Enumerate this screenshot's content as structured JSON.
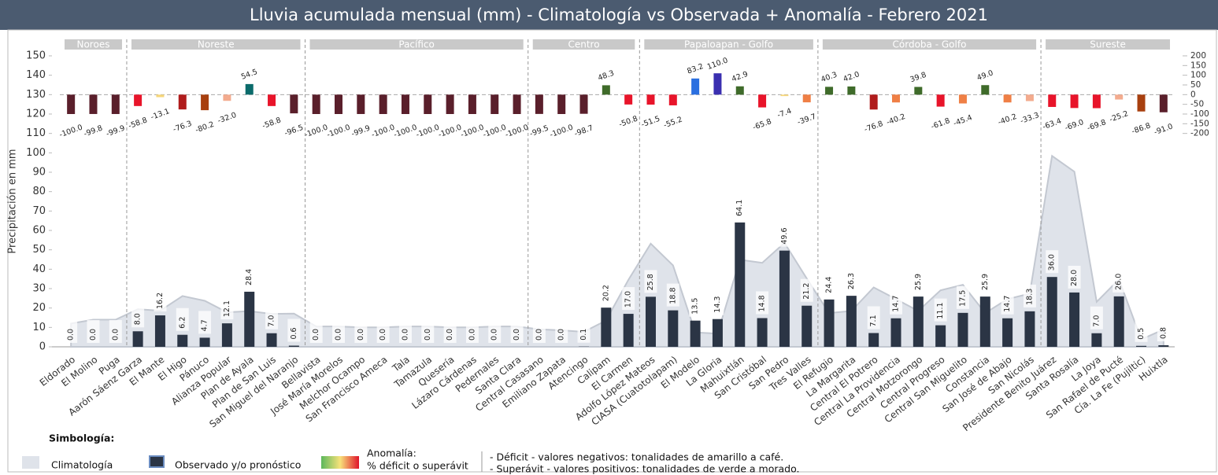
{
  "chart_data": {
    "type": "bar",
    "title": "Lluvia  acumulada mensual (mm)  -  Climatología vs Observada + Anomalía   -  Febrero 2021",
    "ylabel": "Precipitación en mm",
    "groups": [
      {
        "name": "Noroes",
        "categories": [
          "Eldorado",
          "El Molino",
          "Puga"
        ]
      },
      {
        "name": "Noreste",
        "categories": [
          "Aarón Sáenz Garza",
          "El Mante",
          "El Higo",
          "Pánuco",
          "Alianza Popular",
          "Plan de Ayala",
          "Plan de San Luis",
          "San Miguel del Naranjo"
        ]
      },
      {
        "name": "Pacífico",
        "categories": [
          "Bellavista",
          "José María Morelos",
          "Melchor Ocampo",
          "San Francisco Ameca",
          "Tala",
          "Tamazula",
          "Quesería",
          "Lázaro Cárdenas",
          "Pedernales",
          "Santa Clara"
        ]
      },
      {
        "name": "Centro",
        "categories": [
          "Central Casasano",
          "Emiliano Zapata",
          "Atencingo",
          "Calipam",
          "El Carmen"
        ]
      },
      {
        "name": "Papaloapan - Golfo",
        "categories": [
          "Adolfo López Mateos",
          "CIASA (Cuatotolapam)",
          "El Modelo",
          "La Gloria",
          "Mahuixtlán",
          "San Cristóbal",
          "San Pedro",
          "Tres Valles"
        ]
      },
      {
        "name": "Córdoba - Golfo",
        "categories": [
          "El Refugio",
          "La Margarita",
          "Central El Potrero",
          "Central La Providencia",
          "Central Motzorongo",
          "Central Progreso",
          "Central San Miguelito",
          "Constancia",
          "San José de Abajo",
          "San Nicolás"
        ]
      },
      {
        "name": "Sureste",
        "categories": [
          "Presidente Benito Juárez",
          "Santa Rosalía",
          "La Joya",
          "San Rafael de Pucté",
          "Cía. La Fe (Pujiltic)",
          "Huixtla"
        ]
      }
    ],
    "series": [
      {
        "name": "Climatología",
        "color": "#dfe3ea",
        "values": [
          12.0,
          14.0,
          14.0,
          19.4,
          18.6,
          26.2,
          23.7,
          17.8,
          18.4,
          17.0,
          17.1,
          10.5,
          10.5,
          10.0,
          10.0,
          10.5,
          10.5,
          10.0,
          10.0,
          10.5,
          10.5,
          9.0,
          8.5,
          7.7,
          13.6,
          34.6,
          53.2,
          42.0,
          7.4,
          6.8,
          44.9,
          43.3,
          53.6,
          35.2,
          17.4,
          18.5,
          30.6,
          24.6,
          18.5,
          29.1,
          32.0,
          17.4,
          24.6,
          27.4,
          98.4,
          90.3,
          23.2,
          34.8,
          3.8,
          8.9
        ]
      },
      {
        "name": "Observado y/o pronóstico",
        "color": "#2b3545",
        "values": [
          0,
          0,
          0,
          8,
          16.2,
          6.2,
          4.7,
          12.1,
          28.4,
          7,
          0.6,
          0,
          0,
          0,
          0,
          0,
          0,
          0,
          0,
          0,
          0,
          0,
          0,
          0.1,
          20.2,
          17,
          25.8,
          18.8,
          13.5,
          14.3,
          64.1,
          14.8,
          49.6,
          21.2,
          24.4,
          26.3,
          7.1,
          14.7,
          25.9,
          11.1,
          17.5,
          25.9,
          14.7,
          18.3,
          36,
          28,
          7,
          26,
          0.5,
          0.8
        ],
        "value_labels": [
          "0.0",
          "0.0",
          "0.0",
          "8.0",
          "16.2",
          "6.2",
          "4.7",
          "12.1",
          "28.4",
          "7.0",
          "0.6",
          "0.0",
          "0.0",
          "0.0",
          "0.0",
          "0.0",
          "0.0",
          "0.0",
          "0.0",
          "0.0",
          "0.0",
          "0.0",
          "0.0",
          "0.1",
          "20.2",
          "17.0",
          "25.8",
          "18.8",
          "13.5",
          "14.3",
          "64.1",
          "14.8",
          "49.6",
          "21.2",
          "24.4",
          "26.3",
          "7.1",
          "14.7",
          "25.9",
          "11.1",
          "17.5",
          "25.9",
          "14.7",
          "18.3",
          "36.0",
          "28.0",
          "7.0",
          "26.0",
          "0.5",
          "0.8"
        ]
      },
      {
        "name": "% déficit o superávit",
        "axis": "y2",
        "values": [
          -100,
          -99.8,
          -99.9,
          -58.8,
          -13.1,
          -76.3,
          -80.2,
          -32,
          54.5,
          -58.8,
          -96.5,
          -100,
          -100,
          -99.9,
          -100,
          -100,
          -100,
          -100,
          -100,
          -100,
          -100,
          -99.5,
          -100,
          -98.7,
          48.3,
          -50.8,
          -51.5,
          -55.2,
          83.2,
          110,
          42.9,
          -65.8,
          -7.4,
          -39.7,
          40.3,
          42,
          -76.8,
          -40.2,
          39.8,
          -61.8,
          -45.4,
          49,
          -40.2,
          -33.3,
          -63.4,
          -69,
          -69.8,
          -25.2,
          -86.8,
          -91
        ],
        "value_labels": [
          "-100.0",
          "-99.8",
          "-99.9",
          "-58.8",
          "-13.1",
          "-76.3",
          "-80.2",
          "-32.0",
          "54.5",
          "-58.8",
          "-96.5",
          "-100.0",
          "-100.0",
          "-99.9",
          "-100.0",
          "-100.0",
          "-100.0",
          "-100.0",
          "-100.0",
          "-100.0",
          "-100.0",
          "-99.5",
          "-100.0",
          "-98.7",
          "48.3",
          "-50.8",
          "-51.5",
          "-55.2",
          "83.2",
          "110.0",
          "42.9",
          "-65.8",
          "-7.4",
          "-39.7",
          "40.3",
          "42.0",
          "-76.8",
          "-40.2",
          "39.8",
          "-61.8",
          "-45.4",
          "49.0",
          "-40.2",
          "-33.3",
          "-63.4",
          "-69.0",
          "-69.8",
          "-25.2",
          "-86.8",
          "-91.0"
        ]
      }
    ],
    "ylim": [
      0,
      150
    ],
    "yticks": [
      0,
      10,
      20,
      30,
      40,
      50,
      60,
      70,
      80,
      90,
      100,
      110,
      120,
      130,
      140,
      150
    ],
    "y2lim": [
      -200,
      200
    ],
    "y2ticks": [
      -200,
      -150,
      -100,
      -50,
      0,
      50,
      100,
      150,
      200
    ],
    "legend_title": "Simbología:",
    "anomaly_heading": "Anomalía:",
    "legend_notes": [
      "- Déficit - valores negativos: tonalidades de amarillo a café.",
      "- Superávit - valores positivos: tonalidades de verde a morado."
    ]
  }
}
